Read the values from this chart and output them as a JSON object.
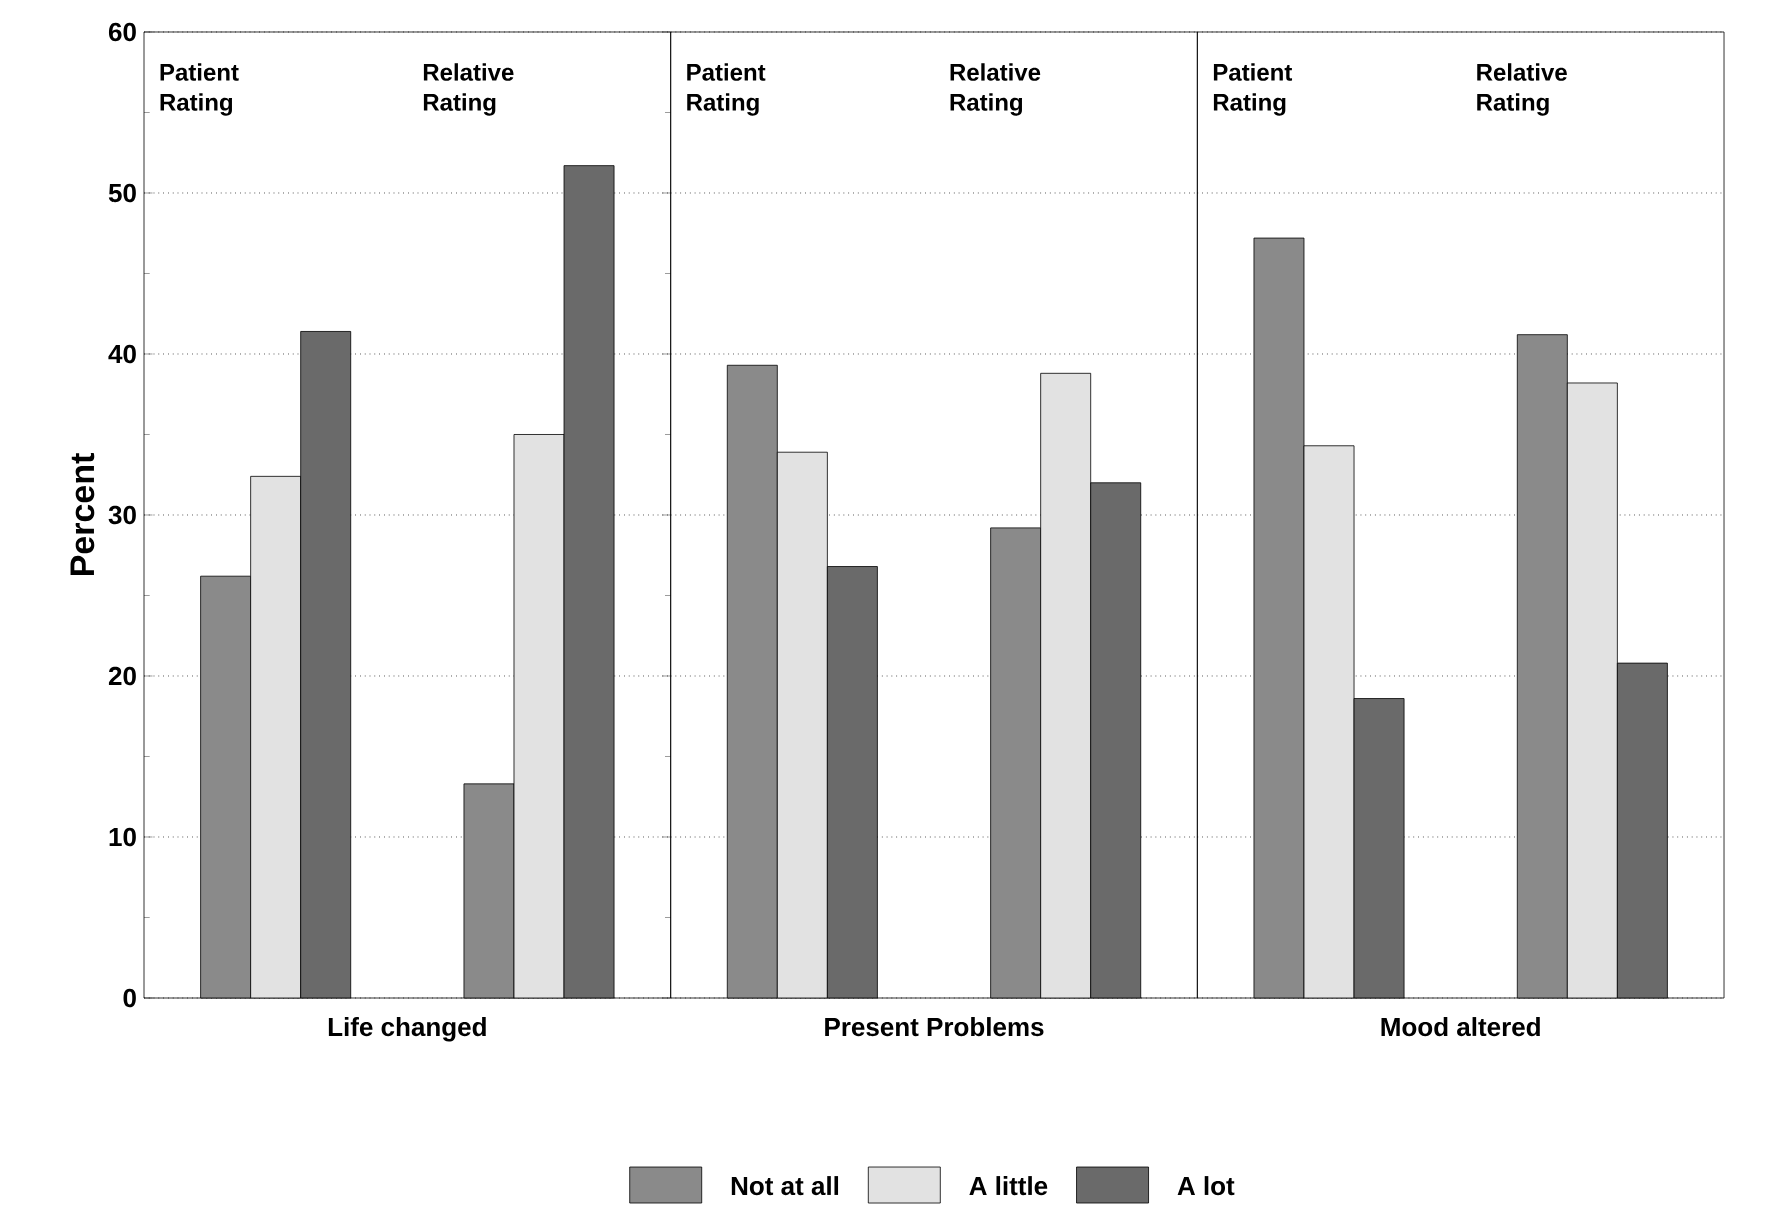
{
  "chart_data": [
    {
      "type": "bar",
      "xlabel": "Life changed",
      "ylabel": "Percent",
      "categories": [
        "Patient Rating",
        "Relative Rating"
      ],
      "series": [
        {
          "color": "#8a8a8a",
          "values": [
            26.2,
            13.3
          ]
        },
        {
          "color": "#e2e2e2",
          "values": [
            32.4,
            35.0
          ]
        },
        {
          "color": "#6a6a6a",
          "values": [
            41.4,
            51.7
          ]
        }
      ],
      "ylim": [
        0,
        60
      ],
      "yticks": [
        0,
        10,
        20,
        30,
        40,
        50,
        60
      ],
      "grid": "y"
    },
    {
      "type": "bar",
      "xlabel": "Present Problems",
      "categories": [
        "Patient Rating",
        "Relative Rating"
      ],
      "series": [
        {
          "name": "Not at all",
          "color": "#8a8a8a",
          "values": [
            39.3,
            29.2
          ]
        },
        {
          "name": "A little",
          "color": "#e2e2e2",
          "values": [
            33.9,
            38.8
          ]
        },
        {
          "name": "A lot",
          "color": "#6a6a6a",
          "values": [
            26.8,
            32.0
          ]
        }
      ],
      "ylim": [
        0,
        60
      ],
      "yticks": [
        0,
        10,
        20,
        30,
        40,
        50,
        60
      ],
      "grid": "y",
      "tick_labels": "x",
      "legend": "bottom"
    },
    {
      "type": "bar",
      "xlabel": "Mood altered",
      "categories": [
        "Patient Rating",
        "Relative Rating"
      ],
      "series": [
        {
          "color": "#8a8a8a",
          "values": [
            47.2,
            41.2
          ]
        },
        {
          "color": "#e2e2e2",
          "values": [
            34.3,
            38.2
          ]
        },
        {
          "color": "#6a6a6a",
          "values": [
            18.6,
            20.8
          ]
        }
      ],
      "ylim": [
        0,
        60
      ],
      "yticks": [
        0,
        10,
        20,
        30,
        40,
        50,
        60
      ],
      "grid": "y",
      "tick_labels": "x"
    }
  ]
}
